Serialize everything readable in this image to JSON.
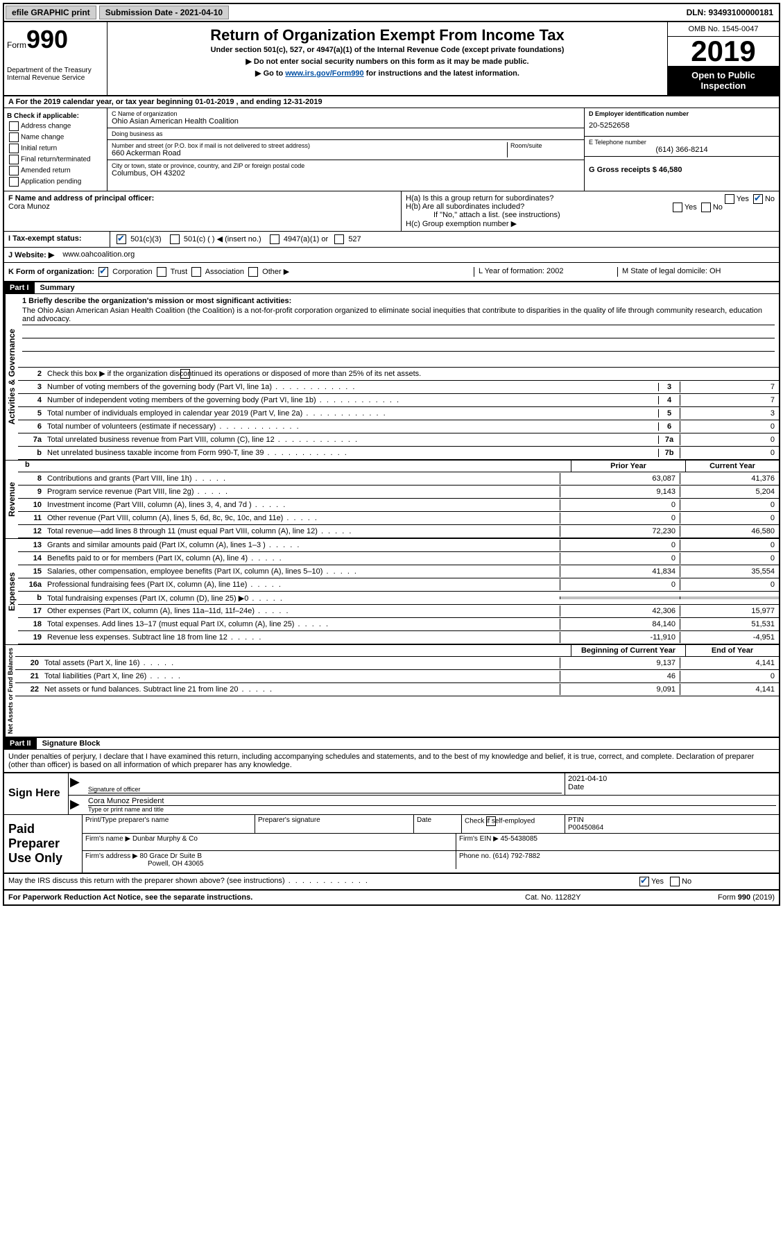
{
  "top": {
    "efile": "efile GRAPHIC print",
    "submission": "Submission Date - 2021-04-10",
    "dln": "DLN: 93493100000181"
  },
  "header": {
    "form_label": "Form",
    "form_num": "990",
    "title": "Return of Organization Exempt From Income Tax",
    "sub": "Under section 501(c), 527, or 4947(a)(1) of the Internal Revenue Code (except private foundations)",
    "arrow1": "▶ Do not enter social security numbers on this form as it may be made public.",
    "arrow2_pre": "▶ Go to ",
    "arrow2_link": "www.irs.gov/Form990",
    "arrow2_post": " for instructions and the latest information.",
    "dept": "Department of the Treasury\nInternal Revenue Service",
    "omb": "OMB No. 1545-0047",
    "year": "2019",
    "open_public": "Open to Public Inspection"
  },
  "rowA": "A For the 2019 calendar year, or tax year beginning 01-01-2019     , and ending 12-31-2019",
  "colB": {
    "label": "B Check if applicable:",
    "items": [
      "Address change",
      "Name change",
      "Initial return",
      "Final return/terminated",
      "Amended return",
      "Application pending"
    ]
  },
  "colC": {
    "name_lbl": "C Name of organization",
    "name": "Ohio Asian American Health Coalition",
    "dba_lbl": "Doing business as",
    "dba": "",
    "addr_lbl": "Number and street (or P.O. box if mail is not delivered to street address)",
    "room_lbl": "Room/suite",
    "addr": "660 Ackerman Road",
    "city_lbl": "City or town, state or province, country, and ZIP or foreign postal code",
    "city": "Columbus, OH  43202"
  },
  "colD": {
    "ein_lbl": "D Employer identification number",
    "ein": "20-5252658",
    "tel_lbl": "E Telephone number",
    "tel": "(614) 366-8214",
    "gross_lbl": "G Gross receipts $ 46,580"
  },
  "colF": {
    "lbl": "F  Name and address of principal officer:",
    "name": "Cora Munoz"
  },
  "colH": {
    "ha": "H(a)  Is this a group return for subordinates?",
    "hb": "H(b)  Are all subordinates included?",
    "hb_note": "If \"No,\" attach a list. (see instructions)",
    "hc": "H(c)  Group exemption number ▶",
    "yes": "Yes",
    "no": "No"
  },
  "rowI": {
    "lbl": "I   Tax-exempt status:",
    "o1": "501(c)(3)",
    "o2": "501(c) (  ) ◀ (insert no.)",
    "o3": "4947(a)(1) or",
    "o4": "527"
  },
  "rowJ": {
    "lbl": "J   Website: ▶",
    "val": "www.oahcoalition.org"
  },
  "rowK": {
    "lbl": "K Form of organization:",
    "o1": "Corporation",
    "o2": "Trust",
    "o3": "Association",
    "o4": "Other ▶",
    "l": "L Year of formation: 2002",
    "m": "M State of legal domicile: OH"
  },
  "part1": {
    "hdr": "Part I",
    "title": "Summary",
    "q1": "1   Briefly describe the organization's mission or most significant activities:",
    "mission": "The Ohio Asian American Asian Health Coalition (the Coalition) is a not-for-profit corporation organized to eliminate social inequities that contribute to disparities in the quality of life through community research, education and advocacy.",
    "q2": "Check this box ▶        if the organization discontinued its operations or disposed of more than 25% of its net assets.",
    "lines_gov": [
      {
        "n": "3",
        "d": "Number of voting members of the governing body (Part VI, line 1a)",
        "b": "3",
        "v": "7"
      },
      {
        "n": "4",
        "d": "Number of independent voting members of the governing body (Part VI, line 1b)",
        "b": "4",
        "v": "7"
      },
      {
        "n": "5",
        "d": "Total number of individuals employed in calendar year 2019 (Part V, line 2a)",
        "b": "5",
        "v": "3"
      },
      {
        "n": "6",
        "d": "Total number of volunteers (estimate if necessary)",
        "b": "6",
        "v": "0"
      },
      {
        "n": "7a",
        "d": "Total unrelated business revenue from Part VIII, column (C), line 12",
        "b": "7a",
        "v": "0"
      },
      {
        "n": "b",
        "d": "Net unrelated business taxable income from Form 990-T, line 39",
        "b": "7b",
        "v": "0"
      }
    ],
    "hdr_prior": "Prior Year",
    "hdr_curr": "Current Year",
    "lines_rev": [
      {
        "n": "8",
        "d": "Contributions and grants (Part VIII, line 1h)",
        "p": "63,087",
        "c": "41,376"
      },
      {
        "n": "9",
        "d": "Program service revenue (Part VIII, line 2g)",
        "p": "9,143",
        "c": "5,204"
      },
      {
        "n": "10",
        "d": "Investment income (Part VIII, column (A), lines 3, 4, and 7d )",
        "p": "0",
        "c": "0"
      },
      {
        "n": "11",
        "d": "Other revenue (Part VIII, column (A), lines 5, 6d, 8c, 9c, 10c, and 11e)",
        "p": "0",
        "c": "0"
      },
      {
        "n": "12",
        "d": "Total revenue—add lines 8 through 11 (must equal Part VIII, column (A), line 12)",
        "p": "72,230",
        "c": "46,580"
      }
    ],
    "lines_exp": [
      {
        "n": "13",
        "d": "Grants and similar amounts paid (Part IX, column (A), lines 1–3 )",
        "p": "0",
        "c": "0"
      },
      {
        "n": "14",
        "d": "Benefits paid to or for members (Part IX, column (A), line 4)",
        "p": "0",
        "c": "0"
      },
      {
        "n": "15",
        "d": "Salaries, other compensation, employee benefits (Part IX, column (A), lines 5–10)",
        "p": "41,834",
        "c": "35,554"
      },
      {
        "n": "16a",
        "d": "Professional fundraising fees (Part IX, column (A), line 11e)",
        "p": "0",
        "c": "0"
      },
      {
        "n": "b",
        "d": "Total fundraising expenses (Part IX, column (D), line 25) ▶0",
        "p": "",
        "c": "",
        "shaded": true
      },
      {
        "n": "17",
        "d": "Other expenses (Part IX, column (A), lines 11a–11d, 11f–24e)",
        "p": "42,306",
        "c": "15,977"
      },
      {
        "n": "18",
        "d": "Total expenses. Add lines 13–17 (must equal Part IX, column (A), line 25)",
        "p": "84,140",
        "c": "51,531"
      },
      {
        "n": "19",
        "d": "Revenue less expenses. Subtract line 18 from line 12",
        "p": "-11,910",
        "c": "-4,951"
      }
    ],
    "hdr_beg": "Beginning of Current Year",
    "hdr_end": "End of Year",
    "lines_net": [
      {
        "n": "20",
        "d": "Total assets (Part X, line 16)",
        "p": "9,137",
        "c": "4,141"
      },
      {
        "n": "21",
        "d": "Total liabilities (Part X, line 26)",
        "p": "46",
        "c": "0"
      },
      {
        "n": "22",
        "d": "Net assets or fund balances. Subtract line 21 from line 20",
        "p": "9,091",
        "c": "4,141"
      }
    ],
    "vlab_gov": "Activities & Governance",
    "vlab_rev": "Revenue",
    "vlab_exp": "Expenses",
    "vlab_net": "Net Assets or Fund Balances"
  },
  "part2": {
    "hdr": "Part II",
    "title": "Signature Block",
    "perjury": "Under penalties of perjury, I declare that I have examined this return, including accompanying schedules and statements, and to the best of my knowledge and belief, it is true, correct, and complete. Declaration of preparer (other than officer) is based on all information of which preparer has any knowledge.",
    "sign_here": "Sign Here",
    "sig_officer": "Signature of officer",
    "date_lbl": "Date",
    "date": "2021-04-10",
    "name_title": "Cora Munoz  President",
    "type_print": "Type or print name and title",
    "paid": "Paid Preparer Use Only",
    "prep_name_lbl": "Print/Type preparer's name",
    "prep_sig_lbl": "Preparer's signature",
    "prep_date_lbl": "Date",
    "check_self": "Check        if self-employed",
    "ptin_lbl": "PTIN",
    "ptin": "P00450864",
    "firm_name_lbl": "Firm's name    ▶",
    "firm_name": "Dunbar Murphy & Co",
    "firm_ein_lbl": "Firm's EIN ▶",
    "firm_ein": "45-5438085",
    "firm_addr_lbl": "Firm's address ▶",
    "firm_addr": "80 Grace Dr Suite B",
    "firm_city": "Powell, OH  43065",
    "phone_lbl": "Phone no.",
    "phone": "(614) 792-7882",
    "discuss": "May the IRS discuss this return with the preparer shown above? (see instructions)"
  },
  "footer": {
    "left": "For Paperwork Reduction Act Notice, see the separate instructions.",
    "mid": "Cat. No. 11282Y",
    "right": "Form 990 (2019)"
  }
}
